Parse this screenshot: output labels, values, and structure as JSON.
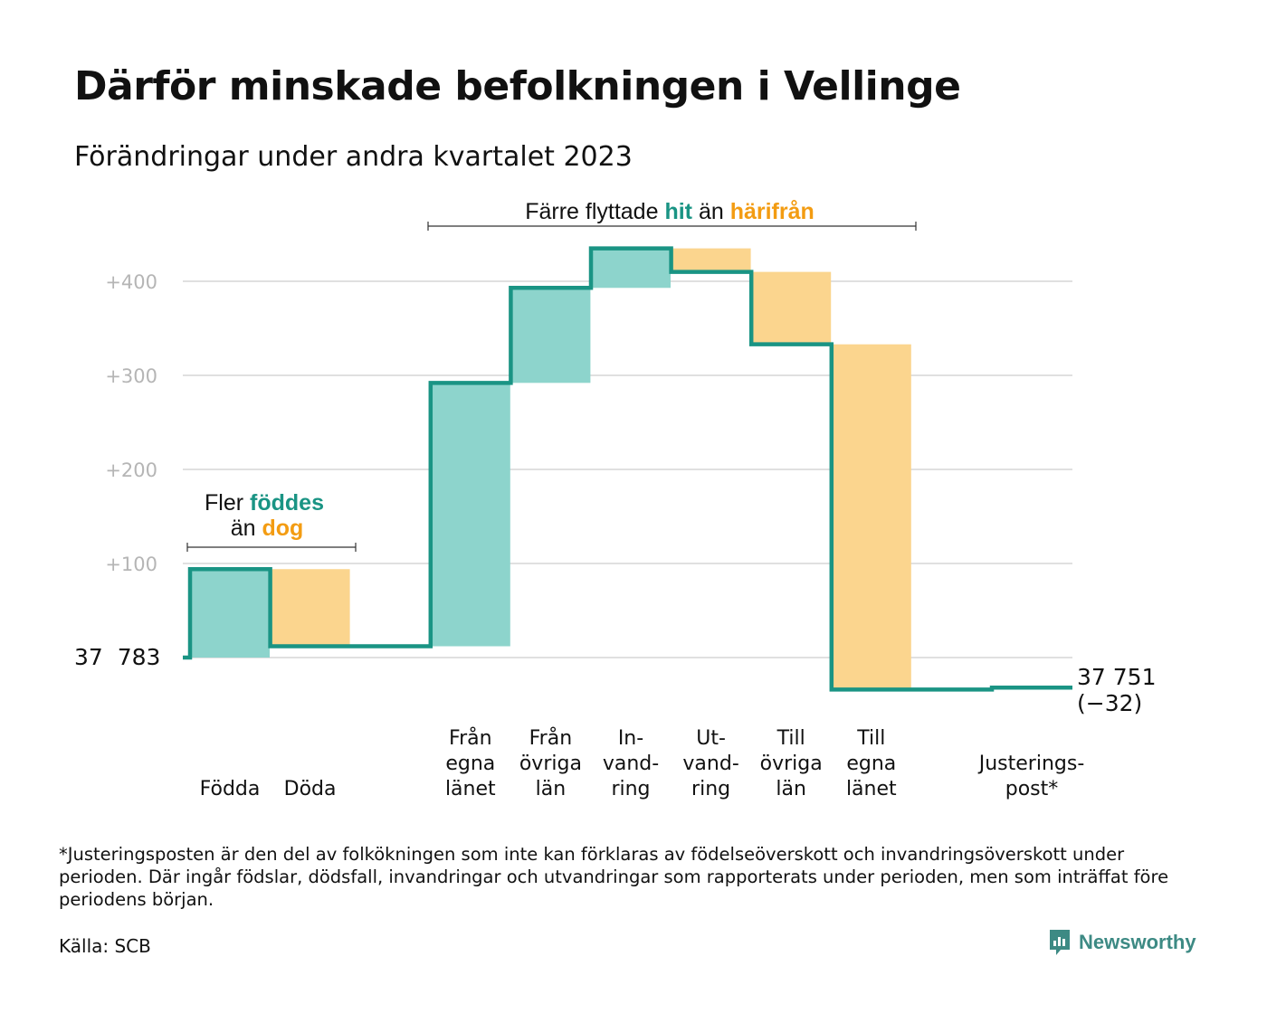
{
  "title": "Därför minskade befolkningen i Vellinge",
  "subtitle": "Förändringar under andra kvartalet 2023",
  "annotations": {
    "births": {
      "line1_prefix": "Fler",
      "line1_highlight": "föddes",
      "line2_prefix": "än",
      "line2_highlight": "dog"
    },
    "moves": {
      "prefix": "Färre flyttade",
      "highlight1": "hit",
      "middle": "än",
      "highlight2": "härifrån"
    }
  },
  "footnote": "*Justeringsposten är den del av folkökningen som inte kan förklaras av födelseöverskott och invandringsöverskott under perioden. Där ingår födslar, dödsfall, invandringar och utvandringar som rapporterats under perioden, men som inträffat före periodens början.",
  "source": "Källa: SCB",
  "brand": {
    "name": "Newsworthy",
    "logo_icon": "newsworthy-logo-icon"
  },
  "colors": {
    "increase": "#8dd4cc",
    "decrease": "#fbd58e",
    "line": "#1a9484",
    "teal_text": "#1a9484",
    "orange_text": "#f39c12",
    "grid": "#e0e0e0",
    "tick": "#b5b5b5"
  },
  "chart_data": {
    "type": "waterfall",
    "start_label": "37  783",
    "end_label_line1": "37 751",
    "end_label_line2": "(−32)",
    "ylim": [
      -35,
      435
    ],
    "y_ticks": [
      100,
      200,
      300,
      400
    ],
    "y_tick_labels": [
      "+100",
      "+200",
      "+300",
      "+400"
    ],
    "steps": [
      {
        "label": [
          "",
          "",
          "Födda"
        ],
        "change": 94,
        "type": "increase"
      },
      {
        "label": [
          "",
          "",
          "Döda"
        ],
        "change": -82,
        "type": "decrease"
      },
      {
        "label": [
          "",
          "",
          ""
        ],
        "change": 0,
        "type": "none"
      },
      {
        "label": [
          "Från",
          "egna",
          "länet"
        ],
        "change": 280,
        "type": "increase"
      },
      {
        "label": [
          "Från",
          "övriga",
          "län"
        ],
        "change": 101,
        "type": "increase"
      },
      {
        "label": [
          "In-",
          "vand-",
          "ring"
        ],
        "change": 42,
        "type": "increase"
      },
      {
        "label": [
          "Ut-",
          "vand-",
          "ring"
        ],
        "change": -25,
        "type": "decrease"
      },
      {
        "label": [
          "Till",
          "övriga",
          "län"
        ],
        "change": -77,
        "type": "decrease"
      },
      {
        "label": [
          "Till",
          "egna",
          "länet"
        ],
        "change": -367,
        "type": "decrease"
      },
      {
        "label": [
          "",
          "",
          ""
        ],
        "change": 0,
        "type": "none"
      },
      {
        "label": [
          "",
          "Justerings-",
          "post*"
        ],
        "change": 2,
        "type": "increase"
      }
    ]
  }
}
